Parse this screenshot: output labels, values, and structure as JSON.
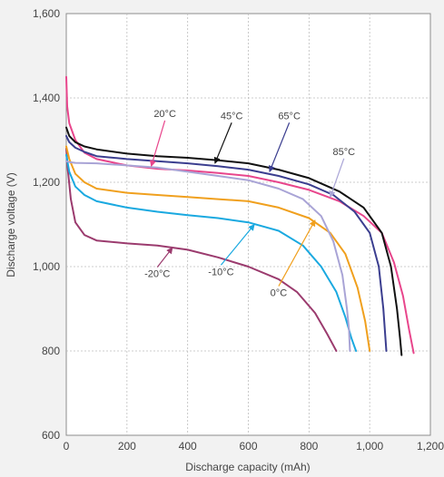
{
  "chart_data": {
    "type": "line",
    "xlabel": "Discharge capacity (mAh)",
    "ylabel": "Discharge voltage (V)",
    "xlim": [
      0,
      1200
    ],
    "ylim": [
      600,
      1600
    ],
    "x_ticks": [
      0,
      200,
      400,
      600,
      800,
      1000,
      1200
    ],
    "x_tick_labels": [
      "0",
      "200",
      "400",
      "600",
      "800",
      "1,000",
      "1,200"
    ],
    "y_ticks": [
      600,
      800,
      1000,
      1200,
      1400,
      1600
    ],
    "y_tick_labels": [
      "600",
      "800",
      "1,000",
      "1,200",
      "1,400",
      "1,600"
    ],
    "grid": true,
    "series": [
      {
        "name": "-20°C",
        "color": "#9b3b6e",
        "points": [
          [
            0,
            1280
          ],
          [
            5,
            1230
          ],
          [
            15,
            1160
          ],
          [
            30,
            1105
          ],
          [
            60,
            1075
          ],
          [
            100,
            1062
          ],
          [
            200,
            1055
          ],
          [
            300,
            1050
          ],
          [
            400,
            1040
          ],
          [
            500,
            1022
          ],
          [
            600,
            1000
          ],
          [
            700,
            970
          ],
          [
            760,
            940
          ],
          [
            820,
            890
          ],
          [
            860,
            840
          ],
          [
            890,
            800
          ]
        ]
      },
      {
        "name": "-10°C",
        "color": "#1aa9e0",
        "points": [
          [
            0,
            1265
          ],
          [
            10,
            1225
          ],
          [
            30,
            1190
          ],
          [
            60,
            1170
          ],
          [
            100,
            1155
          ],
          [
            200,
            1140
          ],
          [
            300,
            1130
          ],
          [
            400,
            1122
          ],
          [
            500,
            1115
          ],
          [
            600,
            1105
          ],
          [
            700,
            1085
          ],
          [
            780,
            1050
          ],
          [
            840,
            1000
          ],
          [
            890,
            940
          ],
          [
            920,
            880
          ],
          [
            940,
            830
          ],
          [
            955,
            800
          ]
        ]
      },
      {
        "name": "0°C",
        "color": "#f0a01e",
        "points": [
          [
            0,
            1285
          ],
          [
            10,
            1255
          ],
          [
            30,
            1220
          ],
          [
            60,
            1200
          ],
          [
            100,
            1185
          ],
          [
            200,
            1175
          ],
          [
            300,
            1170
          ],
          [
            400,
            1165
          ],
          [
            500,
            1160
          ],
          [
            600,
            1155
          ],
          [
            700,
            1140
          ],
          [
            800,
            1115
          ],
          [
            870,
            1080
          ],
          [
            920,
            1030
          ],
          [
            960,
            950
          ],
          [
            985,
            870
          ],
          [
            1000,
            800
          ]
        ]
      },
      {
        "name": "20°C",
        "color": "#e8468c",
        "points": [
          [
            0,
            1450
          ],
          [
            3,
            1380
          ],
          [
            10,
            1340
          ],
          [
            30,
            1300
          ],
          [
            60,
            1270
          ],
          [
            100,
            1255
          ],
          [
            200,
            1240
          ],
          [
            300,
            1232
          ],
          [
            400,
            1228
          ],
          [
            500,
            1222
          ],
          [
            600,
            1215
          ],
          [
            700,
            1200
          ],
          [
            800,
            1182
          ],
          [
            900,
            1155
          ],
          [
            980,
            1120
          ],
          [
            1040,
            1080
          ],
          [
            1080,
            1010
          ],
          [
            1110,
            930
          ],
          [
            1130,
            850
          ],
          [
            1145,
            795
          ]
        ]
      },
      {
        "name": "45°C",
        "color": "#111111",
        "points": [
          [
            0,
            1330
          ],
          [
            10,
            1310
          ],
          [
            30,
            1295
          ],
          [
            60,
            1285
          ],
          [
            100,
            1278
          ],
          [
            200,
            1268
          ],
          [
            300,
            1262
          ],
          [
            400,
            1258
          ],
          [
            500,
            1252
          ],
          [
            600,
            1245
          ],
          [
            700,
            1230
          ],
          [
            800,
            1210
          ],
          [
            900,
            1178
          ],
          [
            980,
            1140
          ],
          [
            1040,
            1080
          ],
          [
            1070,
            1000
          ],
          [
            1090,
            900
          ],
          [
            1100,
            830
          ],
          [
            1105,
            790
          ]
        ]
      },
      {
        "name": "65°C",
        "color": "#3b3e8f",
        "points": [
          [
            0,
            1310
          ],
          [
            10,
            1295
          ],
          [
            30,
            1282
          ],
          [
            60,
            1272
          ],
          [
            100,
            1262
          ],
          [
            200,
            1255
          ],
          [
            300,
            1250
          ],
          [
            400,
            1245
          ],
          [
            500,
            1238
          ],
          [
            600,
            1230
          ],
          [
            700,
            1215
          ],
          [
            800,
            1195
          ],
          [
            880,
            1170
          ],
          [
            950,
            1130
          ],
          [
            1000,
            1080
          ],
          [
            1030,
            1000
          ],
          [
            1045,
            900
          ],
          [
            1055,
            800
          ]
        ]
      },
      {
        "name": "85°C",
        "color": "#a9a4d6",
        "points": [
          [
            0,
            1250
          ],
          [
            10,
            1248
          ],
          [
            30,
            1246
          ],
          [
            100,
            1245
          ],
          [
            200,
            1240
          ],
          [
            300,
            1235
          ],
          [
            400,
            1225
          ],
          [
            500,
            1215
          ],
          [
            600,
            1205
          ],
          [
            700,
            1185
          ],
          [
            780,
            1160
          ],
          [
            840,
            1120
          ],
          [
            880,
            1060
          ],
          [
            910,
            980
          ],
          [
            925,
            900
          ],
          [
            932,
            850
          ],
          [
            935,
            800
          ]
        ]
      }
    ],
    "annotations": [
      {
        "label": "20°C",
        "color": "#e8468c",
        "text_x": 325,
        "text_y": 1355,
        "tip_x": 280,
        "tip_y": 1238
      },
      {
        "label": "45°C",
        "color": "#111111",
        "text_x": 545,
        "text_y": 1350,
        "tip_x": 490,
        "tip_y": 1245
      },
      {
        "label": "65°C",
        "color": "#3b3e8f",
        "text_x": 735,
        "text_y": 1350,
        "tip_x": 670,
        "tip_y": 1225
      },
      {
        "label": "85°C",
        "color": "#a9a4d6",
        "text_x": 915,
        "text_y": 1265,
        "tip_x": 870,
        "tip_y": 1165
      },
      {
        "label": "0°C",
        "color": "#f0a01e",
        "text_x": 700,
        "text_y": 930,
        "tip_x": 820,
        "tip_y": 1110
      },
      {
        "label": "-10°C",
        "color": "#1aa9e0",
        "text_x": 510,
        "text_y": 980,
        "tip_x": 620,
        "tip_y": 1100
      },
      {
        "label": "-20°C",
        "color": "#9b3b6e",
        "text_x": 300,
        "text_y": 975,
        "tip_x": 350,
        "tip_y": 1045
      }
    ]
  }
}
